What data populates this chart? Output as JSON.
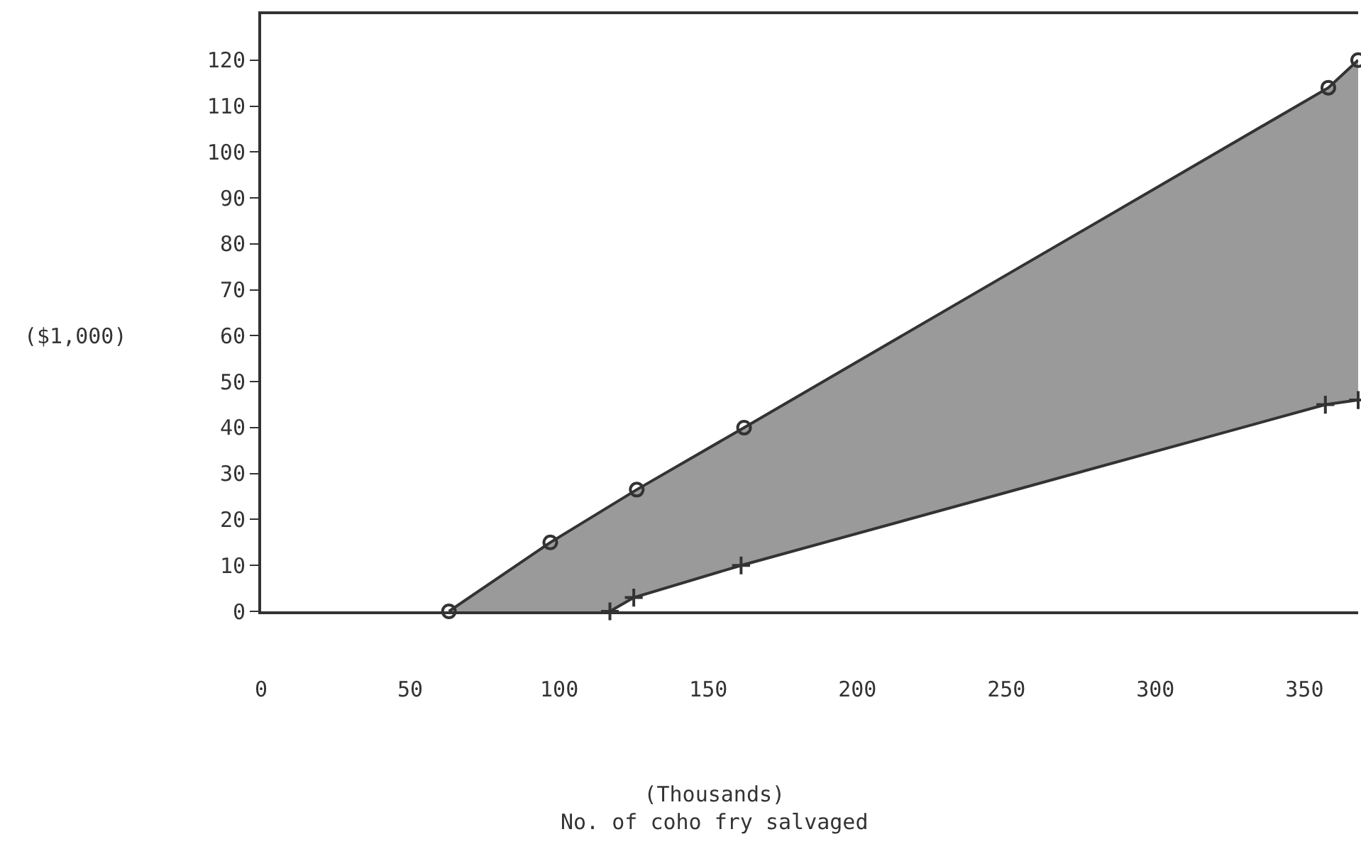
{
  "chart_data": {
    "type": "area",
    "xlabel": "(Thousands)\nNo. of coho fry salvaged",
    "ylabel": "($1,000)",
    "xlim": [
      0,
      368
    ],
    "xticks": [
      0,
      50,
      100,
      150,
      200,
      250,
      300,
      350
    ],
    "ylim": [
      0,
      130
    ],
    "yticks": [
      0,
      10,
      20,
      30,
      40,
      50,
      60,
      70,
      80,
      90,
      100,
      110,
      120
    ],
    "series": [
      {
        "type": "line",
        "color": "#333333",
        "marker": "cross",
        "x": [
          117,
          125,
          161,
          357,
          368
        ],
        "values": [
          0,
          3,
          10,
          45,
          46
        ]
      },
      {
        "color": "#9a9a9a",
        "marker": "circle",
        "x": [
          63,
          97,
          126,
          162,
          358,
          368
        ],
        "values": [
          0,
          15,
          26.5,
          40,
          114,
          120
        ]
      }
    ]
  }
}
